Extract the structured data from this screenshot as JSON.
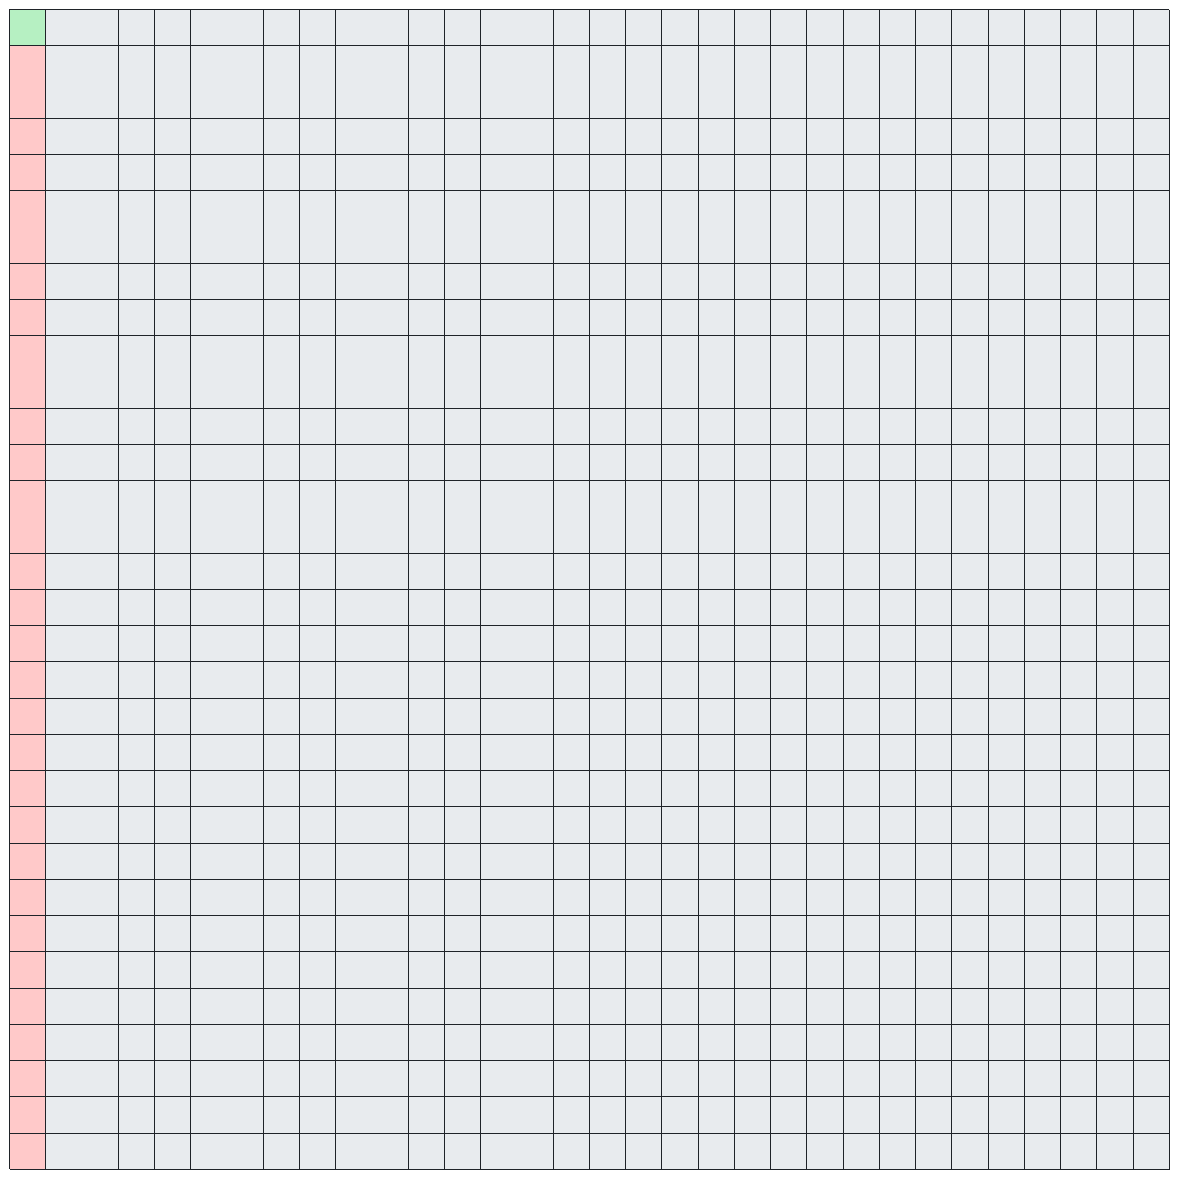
{
  "board": {
    "rows": 32,
    "cols": 32,
    "colors": {
      "empty": "#e8ebee",
      "start": "#b6f0c2",
      "blocked": "#ffc9c9",
      "grid_line": "#1f2328"
    },
    "cells": {
      "start": [
        [
          0,
          0
        ]
      ],
      "blocked_column": 0,
      "blocked_rows_from": 1
    }
  }
}
